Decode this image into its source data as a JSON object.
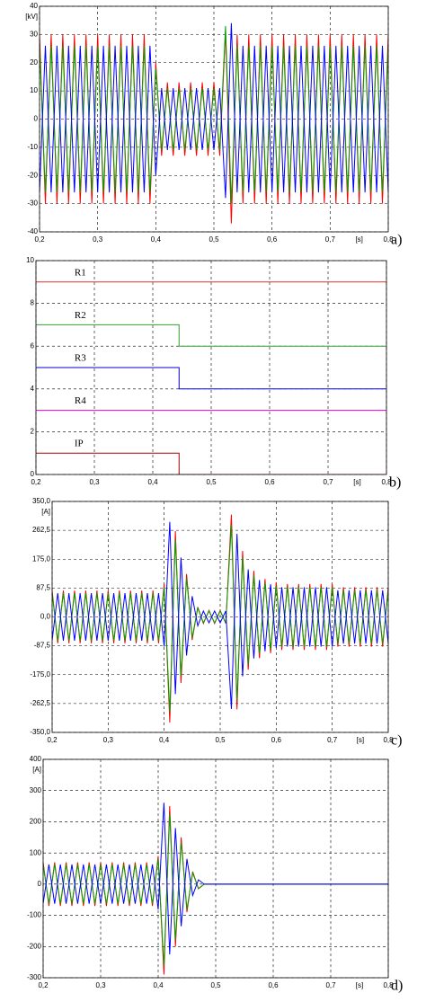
{
  "chart_data": [
    {
      "type": "line",
      "y_unit": "[kV]",
      "x_unit": "[s]",
      "panel": "a)",
      "grid": true,
      "xlim": [
        0.2,
        0.8
      ],
      "ylim": [
        -40,
        40
      ],
      "xticks": [
        {
          "value": 0.2,
          "label": "0,2"
        },
        {
          "value": 0.3,
          "label": "0,3"
        },
        {
          "value": 0.4,
          "label": "0,4"
        },
        {
          "value": 0.5,
          "label": "0,5"
        },
        {
          "value": 0.6,
          "label": "0,6"
        },
        {
          "value": 0.7,
          "label": "0,7"
        },
        {
          "value": 0.8,
          "label": "0,8"
        }
      ],
      "yticks": [
        -40,
        -30,
        -20,
        -10,
        0,
        10,
        20,
        30,
        40
      ],
      "x": [
        0.2,
        0.21,
        0.22,
        0.23,
        0.24,
        0.25,
        0.26,
        0.27,
        0.28,
        0.29,
        0.3,
        0.31,
        0.32,
        0.33,
        0.34,
        0.35,
        0.36,
        0.37,
        0.38,
        0.39,
        0.4,
        0.41,
        0.42,
        0.43,
        0.44,
        0.45,
        0.46,
        0.47,
        0.48,
        0.49,
        0.5,
        0.51,
        0.52,
        0.53,
        0.54,
        0.55,
        0.56,
        0.57,
        0.58,
        0.59,
        0.6,
        0.61,
        0.62,
        0.63,
        0.64,
        0.65,
        0.66,
        0.67,
        0.68,
        0.69,
        0.7,
        0.71,
        0.72,
        0.73,
        0.74,
        0.75,
        0.76,
        0.77,
        0.78,
        0.79,
        0.8
      ],
      "series": [
        {
          "color": "#ff0000",
          "values": [
            30,
            -30,
            30,
            -30,
            30,
            -30,
            30,
            -30,
            30,
            -30,
            30,
            -30,
            30,
            -30,
            30,
            -30,
            30,
            -30,
            30,
            -30,
            20,
            -13,
            13,
            -13,
            13,
            -13,
            13,
            -13,
            13,
            -13,
            13,
            -13,
            31,
            -37,
            30,
            -30,
            30,
            -30,
            30,
            -30,
            30,
            -30,
            30,
            -30,
            30,
            -30,
            30,
            -30,
            30,
            -30,
            30,
            -30,
            30,
            -30,
            30,
            -30,
            30,
            -30,
            30,
            -30,
            30
          ]
        },
        {
          "color": "#00a000",
          "values": [
            26,
            -26,
            26,
            -26,
            26,
            -26,
            26,
            -26,
            26,
            -26,
            26,
            -26,
            26,
            -26,
            26,
            -26,
            26,
            -26,
            26,
            -26,
            18,
            -11,
            11,
            -11,
            11,
            -11,
            11,
            -11,
            11,
            -11,
            11,
            -11,
            33,
            -30,
            26,
            -26,
            26,
            -26,
            26,
            -26,
            26,
            -26,
            26,
            -26,
            26,
            -26,
            26,
            -26,
            26,
            -26,
            26,
            -26,
            26,
            -26,
            26,
            -26,
            26,
            -26,
            26,
            -26,
            26
          ]
        },
        {
          "color": "#0000ff",
          "values": [
            -26,
            26,
            -26,
            26,
            -26,
            26,
            -26,
            26,
            -26,
            26,
            -26,
            26,
            -26,
            26,
            -26,
            26,
            -26,
            26,
            -26,
            26,
            -20,
            11,
            -11,
            11,
            -11,
            11,
            -11,
            11,
            -11,
            11,
            -11,
            11,
            -28,
            34,
            -26,
            26,
            -26,
            26,
            -26,
            26,
            -26,
            26,
            -26,
            26,
            -26,
            26,
            -26,
            26,
            -26,
            26,
            -26,
            26,
            -26,
            26,
            -26,
            26,
            -26,
            26,
            -26,
            26,
            -26
          ]
        }
      ]
    },
    {
      "type": "line",
      "x_unit": "[s]",
      "panel": "b)",
      "grid": true,
      "xlim": [
        0.2,
        0.8
      ],
      "ylim": [
        0,
        10
      ],
      "xticks": [
        {
          "value": 0.2,
          "label": "0,2"
        },
        {
          "value": 0.3,
          "label": "0,3"
        },
        {
          "value": 0.4,
          "label": "0,4"
        },
        {
          "value": 0.5,
          "label": "0,5"
        },
        {
          "value": 0.6,
          "label": "0,6"
        },
        {
          "value": 0.7,
          "label": "0,7"
        },
        {
          "value": 0.8,
          "label": "0,8"
        }
      ],
      "yticks": [
        0,
        2,
        4,
        6,
        8,
        10
      ],
      "x": [
        0.2,
        0.445,
        0.445,
        0.8
      ],
      "series": [
        {
          "name": "R1",
          "color": "#e03030",
          "values": [
            9,
            9,
            9,
            9
          ]
        },
        {
          "name": "R2",
          "color": "#30a030",
          "values": [
            7,
            7,
            6,
            6
          ]
        },
        {
          "name": "R3",
          "color": "#0000cc",
          "values": [
            5,
            5,
            4,
            4
          ]
        },
        {
          "name": "R4",
          "color": "#e000e0",
          "values": [
            3,
            3,
            3,
            3
          ]
        },
        {
          "name": "IP",
          "color": "#a00000",
          "values": [
            1,
            1,
            0,
            0
          ]
        }
      ]
    },
    {
      "type": "line",
      "y_unit": "[A]",
      "x_unit": "[s]",
      "panel": "c)",
      "grid": true,
      "xlim": [
        0.2,
        0.8
      ],
      "ylim": [
        -350,
        350
      ],
      "xticks": [
        {
          "value": 0.2,
          "label": "0,2"
        },
        {
          "value": 0.3,
          "label": "0,3"
        },
        {
          "value": 0.4,
          "label": "0,4"
        },
        {
          "value": 0.5,
          "label": "0,5"
        },
        {
          "value": 0.6,
          "label": "0,6"
        },
        {
          "value": 0.7,
          "label": "0,7"
        },
        {
          "value": 0.8,
          "label": "0,8"
        }
      ],
      "yticks": [
        {
          "value": -350,
          "label": "-350,0"
        },
        {
          "value": -262.5,
          "label": "-262,5"
        },
        {
          "value": -175,
          "label": "-175,0"
        },
        {
          "value": -87.5,
          "label": "-87,5"
        },
        {
          "value": 0,
          "label": "0,0"
        },
        {
          "value": 87.5,
          "label": "87,5"
        },
        {
          "value": 175,
          "label": "175,0"
        },
        {
          "value": 262.5,
          "label": "262,5"
        },
        {
          "value": 350,
          "label": "350,0"
        }
      ],
      "x": [
        0.2,
        0.21,
        0.22,
        0.23,
        0.24,
        0.25,
        0.26,
        0.27,
        0.28,
        0.29,
        0.3,
        0.31,
        0.32,
        0.33,
        0.34,
        0.35,
        0.36,
        0.37,
        0.38,
        0.39,
        0.4,
        0.41,
        0.42,
        0.43,
        0.44,
        0.45,
        0.46,
        0.47,
        0.48,
        0.49,
        0.5,
        0.51,
        0.52,
        0.53,
        0.54,
        0.55,
        0.56,
        0.57,
        0.58,
        0.59,
        0.6,
        0.61,
        0.62,
        0.63,
        0.64,
        0.65,
        0.66,
        0.67,
        0.68,
        0.69,
        0.7,
        0.71,
        0.72,
        0.73,
        0.74,
        0.75,
        0.76,
        0.77,
        0.78,
        0.79,
        0.8
      ],
      "series": [
        {
          "color": "#ff0000",
          "values": [
            80,
            -80,
            80,
            -80,
            80,
            -80,
            80,
            -80,
            80,
            -80,
            80,
            -80,
            80,
            -80,
            80,
            -80,
            80,
            -80,
            80,
            -80,
            100,
            -320,
            260,
            -200,
            130,
            -70,
            30,
            -20,
            20,
            -20,
            20,
            -20,
            310,
            -280,
            200,
            -160,
            140,
            -125,
            115,
            -110,
            105,
            -100,
            100,
            -100,
            100,
            -100,
            100,
            -100,
            100,
            -100,
            100,
            -90,
            90,
            -90,
            90,
            -90,
            90,
            -90,
            90,
            -90,
            90
          ]
        },
        {
          "color": "#00a000",
          "values": [
            72,
            -72,
            72,
            -72,
            72,
            -72,
            72,
            -72,
            72,
            -72,
            72,
            -72,
            72,
            -72,
            72,
            -72,
            72,
            -72,
            72,
            -72,
            90,
            -288,
            234,
            -180,
            117,
            -63,
            27,
            -18,
            18,
            -18,
            18,
            -18,
            279,
            -252,
            180,
            -144,
            126,
            -112,
            104,
            -99,
            94,
            -90,
            90,
            -90,
            90,
            -90,
            90,
            -90,
            90,
            -90,
            90,
            -81,
            81,
            -81,
            81,
            -81,
            81,
            -81,
            81,
            -81,
            81
          ]
        },
        {
          "color": "#0000ff",
          "values": [
            -72,
            72,
            -72,
            72,
            -72,
            72,
            -72,
            72,
            -72,
            72,
            -72,
            72,
            -72,
            72,
            -72,
            72,
            -72,
            72,
            -72,
            72,
            -90,
            288,
            -234,
            180,
            -117,
            63,
            -27,
            18,
            -18,
            18,
            -18,
            18,
            -279,
            252,
            -180,
            144,
            -126,
            112,
            -104,
            99,
            -94,
            90,
            -90,
            90,
            -90,
            90,
            -90,
            90,
            -90,
            90,
            -90,
            81,
            -81,
            81,
            -81,
            81,
            -81,
            81,
            -81,
            81,
            -81
          ]
        }
      ]
    },
    {
      "type": "line",
      "y_unit": "[A]",
      "x_unit": "[s]",
      "panel": "d)",
      "grid": true,
      "xlim": [
        0.2,
        0.8
      ],
      "ylim": [
        -300,
        400
      ],
      "xticks": [
        {
          "value": 0.2,
          "label": "0,2"
        },
        {
          "value": 0.3,
          "label": "0,3"
        },
        {
          "value": 0.4,
          "label": "0,4"
        },
        {
          "value": 0.5,
          "label": "0,5"
        },
        {
          "value": 0.6,
          "label": "0,6"
        },
        {
          "value": 0.7,
          "label": "0,7"
        },
        {
          "value": 0.8,
          "label": "0,8"
        }
      ],
      "yticks": [
        -300,
        -200,
        -100,
        0,
        100,
        200,
        300,
        400
      ],
      "x": [
        0.2,
        0.21,
        0.22,
        0.23,
        0.24,
        0.25,
        0.26,
        0.27,
        0.28,
        0.29,
        0.3,
        0.31,
        0.32,
        0.33,
        0.34,
        0.35,
        0.36,
        0.37,
        0.38,
        0.39,
        0.4,
        0.41,
        0.42,
        0.43,
        0.44,
        0.45,
        0.46,
        0.47,
        0.48,
        0.49,
        0.5,
        0.51,
        0.52,
        0.53,
        0.54,
        0.55,
        0.56,
        0.57,
        0.58,
        0.59,
        0.6,
        0.61,
        0.62,
        0.63,
        0.64,
        0.65,
        0.66,
        0.67,
        0.68,
        0.69,
        0.7,
        0.71,
        0.72,
        0.73,
        0.74,
        0.75,
        0.76,
        0.77,
        0.78,
        0.79,
        0.8
      ],
      "series": [
        {
          "color": "#ff0000",
          "values": [
            70,
            -70,
            70,
            -70,
            70,
            -70,
            70,
            -70,
            70,
            -70,
            70,
            -70,
            70,
            -70,
            70,
            -70,
            70,
            -70,
            70,
            -70,
            90,
            -290,
            250,
            -200,
            150,
            -90,
            40,
            -15,
            0,
            0,
            0,
            0,
            0,
            0,
            0,
            0,
            0,
            0,
            0,
            0,
            0,
            0,
            0,
            0,
            0,
            0,
            0,
            0,
            0,
            0,
            0,
            0,
            0,
            0,
            0,
            0,
            0,
            0,
            0,
            0,
            0
          ]
        },
        {
          "color": "#00a000",
          "values": [
            63,
            -63,
            63,
            -63,
            63,
            -63,
            63,
            -63,
            63,
            -63,
            63,
            -63,
            63,
            -63,
            63,
            -63,
            63,
            -63,
            63,
            -63,
            81,
            -261,
            225,
            -180,
            135,
            -81,
            36,
            -14,
            0,
            0,
            0,
            0,
            0,
            0,
            0,
            0,
            0,
            0,
            0,
            0,
            0,
            0,
            0,
            0,
            0,
            0,
            0,
            0,
            0,
            0,
            0,
            0,
            0,
            0,
            0,
            0,
            0,
            0,
            0,
            0,
            0
          ]
        },
        {
          "color": "#0000ff",
          "values": [
            -63,
            63,
            -63,
            63,
            -63,
            63,
            -63,
            63,
            -63,
            63,
            -63,
            63,
            -63,
            63,
            -63,
            63,
            -63,
            63,
            -63,
            63,
            -81,
            261,
            -225,
            180,
            -135,
            81,
            -36,
            14,
            0,
            0,
            0,
            0,
            0,
            0,
            0,
            0,
            0,
            0,
            0,
            0,
            0,
            0,
            0,
            0,
            0,
            0,
            0,
            0,
            0,
            0,
            0,
            0,
            0,
            0,
            0,
            0,
            0,
            0,
            0,
            0,
            0
          ]
        }
      ]
    }
  ]
}
